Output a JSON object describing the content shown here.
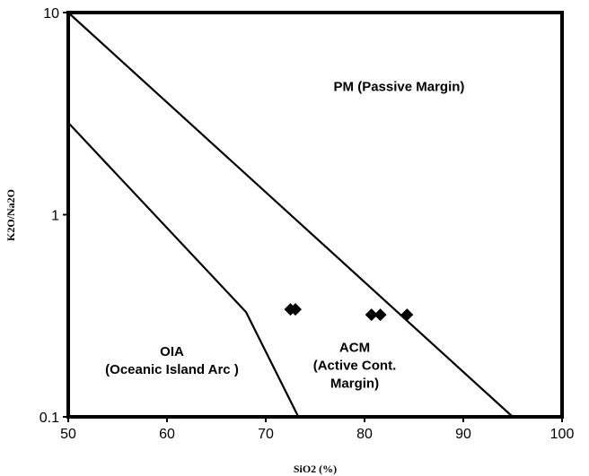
{
  "chart_data": {
    "type": "scatter",
    "title": "",
    "xlabel": "SiO2 (%)",
    "ylabel": "K2O/Na2O",
    "xlim": [
      50,
      100
    ],
    "ylim": [
      0.1,
      10
    ],
    "y_scale": "log",
    "x_ticks": [
      "50",
      "60",
      "70",
      "80",
      "90",
      "100"
    ],
    "y_ticks": [
      {
        "value": 10,
        "label": "10"
      },
      {
        "value": 1,
        "label": "1"
      },
      {
        "value": 0.1,
        "label": "0.1"
      }
    ],
    "grid": false,
    "legend": "none",
    "points": [
      {
        "x": 72.5,
        "y": 0.34
      },
      {
        "x": 73.0,
        "y": 0.34
      },
      {
        "x": 80.7,
        "y": 0.32
      },
      {
        "x": 81.6,
        "y": 0.32
      },
      {
        "x": 84.3,
        "y": 0.32
      }
    ],
    "boundaries": [
      {
        "name": "PM-ACM",
        "points": [
          [
            50,
            10
          ],
          [
            95,
            0.1
          ]
        ]
      },
      {
        "name": "ACM-OIA",
        "points": [
          [
            50,
            2.85
          ],
          [
            68,
            0.33
          ],
          [
            73.3,
            0.1
          ]
        ]
      }
    ],
    "regions": [
      {
        "lines": [
          "PM (Passive Margin)"
        ],
        "x": 83.5,
        "y": 4.3
      },
      {
        "lines": [
          "OIA",
          "(Oceanic Island Arc )"
        ],
        "x": 60.5,
        "y": 0.19
      },
      {
        "lines": [
          "ACM",
          "(Active Cont.",
          "Margin)"
        ],
        "x": 79,
        "y": 0.18
      }
    ],
    "colors": {
      "line": "#000000",
      "marker": "#000000",
      "background": "#ffffff"
    }
  }
}
